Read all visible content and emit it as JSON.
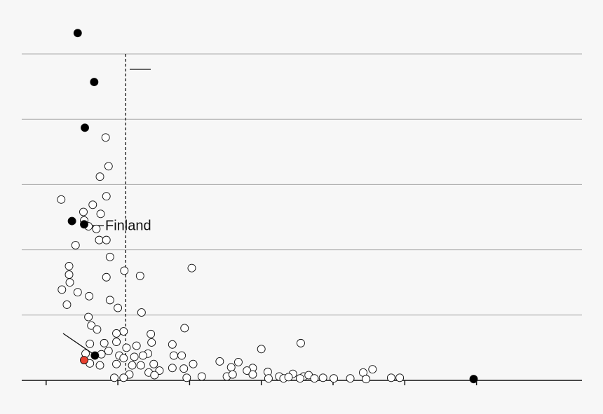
{
  "chart_data": {
    "type": "scatter",
    "xlim": [
      -0.34,
      7.47
    ],
    "ylim": [
      0,
      5.5
    ],
    "xticks": [
      0,
      1,
      2,
      3,
      4,
      5,
      6
    ],
    "yticks": [
      1,
      2,
      3,
      4,
      5
    ],
    "grid": true,
    "reference_x": 1.11,
    "annotations": [
      {
        "text": "Finland"
      }
    ],
    "series": [
      {
        "color": "#ffffff",
        "x": [
          0.83,
          0.87,
          0.75,
          0.84,
          0.21,
          0.65,
          0.52,
          0.76,
          0.53,
          0.59,
          0.7,
          0.74,
          0.84,
          0.41,
          0.89,
          0.32,
          0.32,
          0.33,
          0.84,
          1.09,
          1.31,
          2.03,
          0.22,
          0.44,
          0.6,
          0.89,
          1.0,
          0.29,
          1.33,
          0.59,
          0.63,
          0.71,
          1.08,
          0.98,
          1.46,
          1.93,
          1.47,
          0.61,
          0.81,
          0.98,
          1.12,
          1.26,
          1.76,
          3.55,
          3.0,
          0.87,
          0.55,
          0.77,
          1.02,
          1.23,
          1.42,
          1.78,
          1.89,
          2.42,
          2.68,
          0.61,
          0.75,
          0.98,
          1.2,
          1.32,
          1.5,
          1.76,
          1.92,
          2.05,
          2.58,
          2.88,
          4.55,
          2.8,
          1.58,
          1.43,
          1.16,
          1.51,
          2.17,
          2.52,
          2.6,
          3.09,
          3.44,
          4.42,
          0.95,
          1.08,
          1.96,
          2.88,
          3.1,
          3.25,
          3.31,
          3.38,
          3.59,
          3.66,
          3.74,
          3.86,
          4.01,
          4.24,
          4.46,
          4.81,
          4.93,
          3.54,
          1.35,
          1.08
        ],
        "values": [
          3.72,
          3.28,
          3.12,
          2.82,
          2.77,
          2.69,
          2.58,
          2.55,
          2.45,
          2.36,
          2.32,
          2.15,
          2.15,
          2.07,
          1.89,
          1.75,
          1.62,
          1.5,
          1.58,
          1.68,
          1.6,
          1.72,
          1.39,
          1.35,
          1.29,
          1.23,
          1.11,
          1.16,
          1.04,
          0.97,
          0.84,
          0.78,
          0.75,
          0.72,
          0.71,
          0.8,
          0.58,
          0.56,
          0.57,
          0.59,
          0.5,
          0.53,
          0.55,
          0.57,
          0.48,
          0.45,
          0.41,
          0.4,
          0.38,
          0.36,
          0.41,
          0.38,
          0.38,
          0.29,
          0.28,
          0.26,
          0.23,
          0.25,
          0.23,
          0.23,
          0.25,
          0.19,
          0.18,
          0.25,
          0.2,
          0.19,
          0.17,
          0.15,
          0.15,
          0.12,
          0.09,
          0.08,
          0.06,
          0.06,
          0.09,
          0.13,
          0.1,
          0.12,
          0.04,
          0.04,
          0.04,
          0.09,
          0.03,
          0.06,
          0.03,
          0.05,
          0.06,
          0.08,
          0.03,
          0.04,
          0.03,
          0.03,
          0.02,
          0.04,
          0.04,
          0.03,
          0.38,
          0.34
        ]
      },
      {
        "color": "#000000",
        "x": [
          0.44,
          0.67,
          0.54,
          0.36,
          0.53,
          0.68,
          5.96
        ],
        "values": [
          5.32,
          4.57,
          3.87,
          2.44,
          2.39,
          0.38,
          0.02
        ]
      },
      {
        "color": "#e8412f",
        "x": [
          0.53
        ],
        "values": [
          0.31
        ]
      }
    ]
  }
}
